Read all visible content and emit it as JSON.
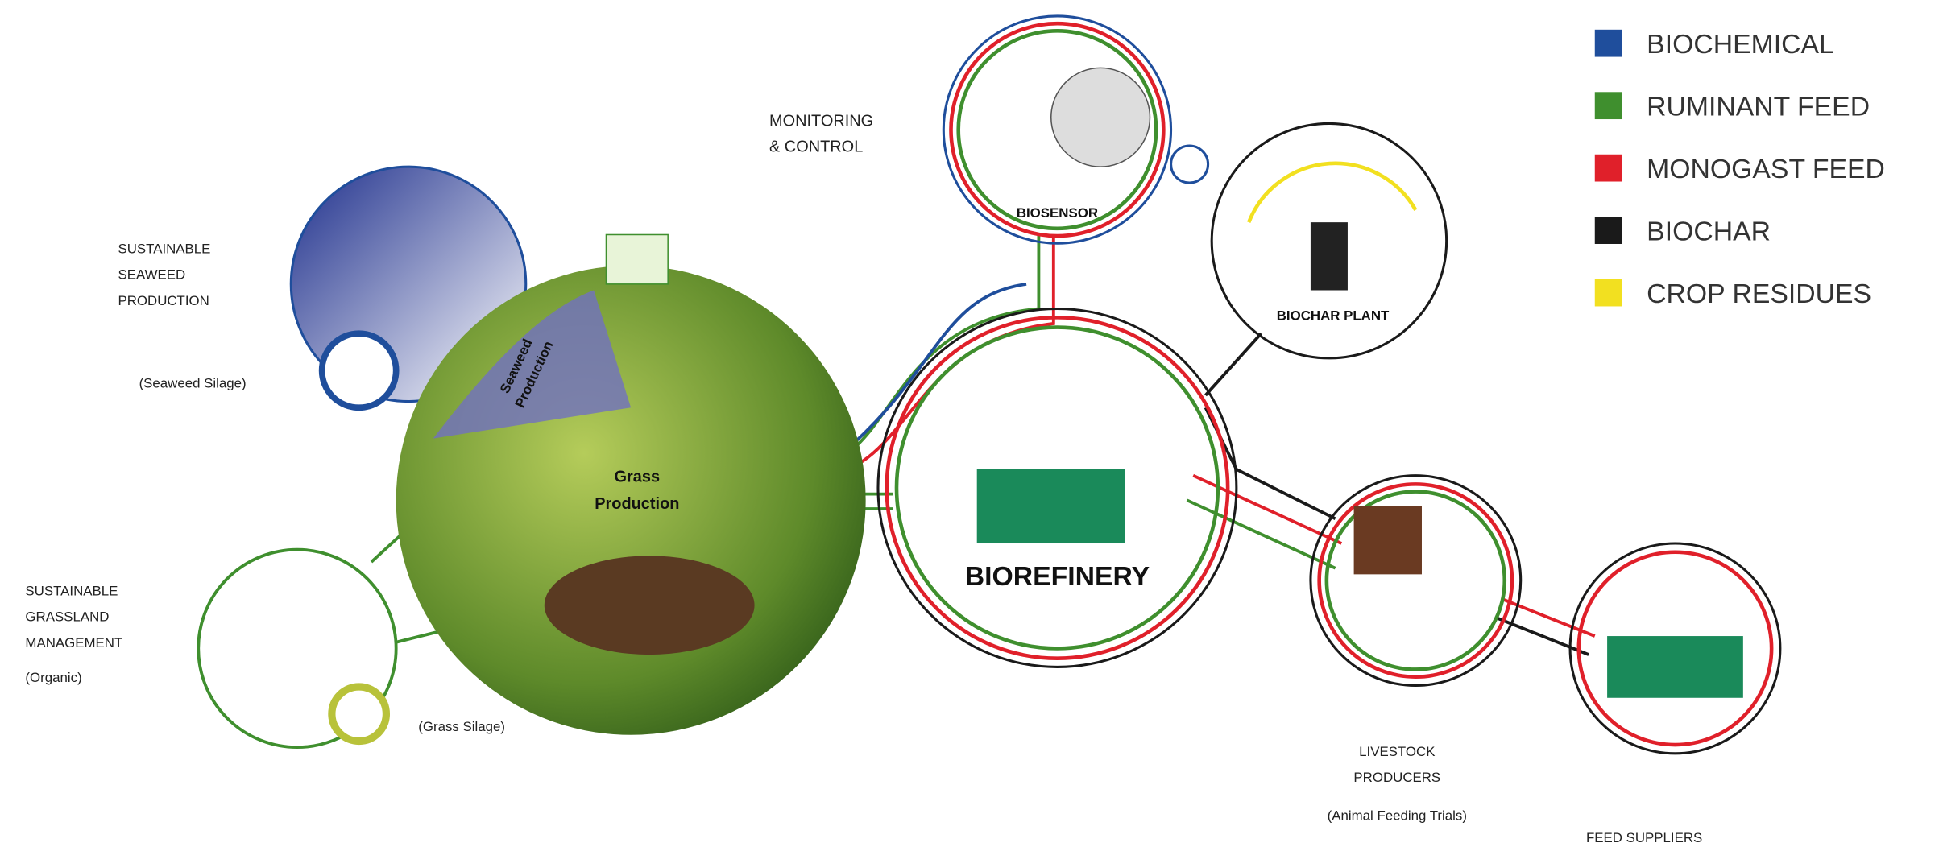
{
  "legend": [
    {
      "label": "BIOCHEMICAL",
      "color": "#1f4e9c"
    },
    {
      "label": "RUMINANT  FEED",
      "color": "#3f8f2e"
    },
    {
      "label": "MONOGAST FEED",
      "color": "#e0202a"
    },
    {
      "label": "BIOCHAR",
      "color": "#1a1a1a"
    },
    {
      "label": "CROP RESIDUES",
      "color": "#f2e020"
    }
  ],
  "labels": {
    "seaweed": [
      "SUSTAINABLE",
      "SEAWEED",
      "PRODUCTION"
    ],
    "seaweed_silage": "(Seaweed Silage)",
    "grassland": [
      "SUSTAINABLE",
      "GRASSLAND",
      "MANAGEMENT"
    ],
    "organic": "(Organic)",
    "grass_silage": "(Grass Silage)",
    "monitoring": [
      "MONITORING",
      "& CONTROL"
    ],
    "biosensor": "BIOSENSOR",
    "biochar_plant": "BIOCHAR PLANT",
    "biorefinery": "BIOREFINERY",
    "livestock": [
      "LIVESTOCK",
      "PRODUCERS"
    ],
    "feeding_trials": "(Animal Feeding Trials)",
    "feed_suppliers": "FEED SUPPLIERS",
    "grass_production": [
      "Grass",
      "Production"
    ],
    "seaweed_production": [
      "Seaweed",
      "Production"
    ]
  }
}
